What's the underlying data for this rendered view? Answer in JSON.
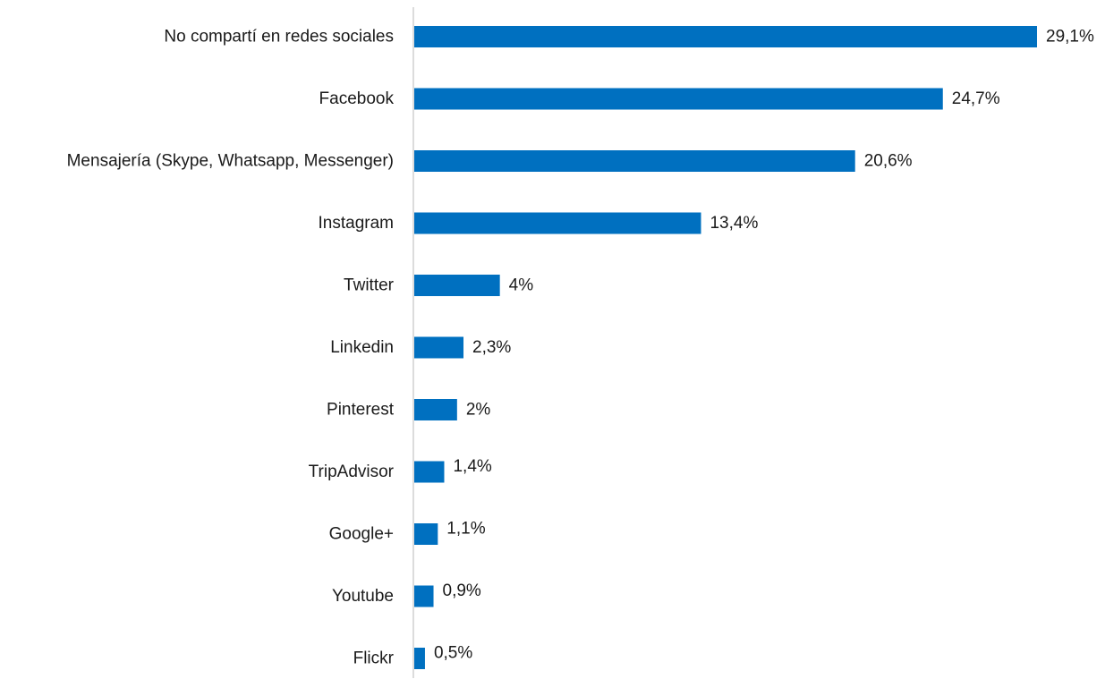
{
  "chart_data": {
    "type": "bar",
    "orientation": "horizontal",
    "categories": [
      "No compartí en redes sociales",
      "Facebook",
      "Mensajería (Skype, Whatsapp, Messenger)",
      "Instagram",
      "Twitter",
      "Linkedin",
      "Pinterest",
      "TripAdvisor",
      "Google+",
      "Youtube",
      "Flickr"
    ],
    "values": [
      29.1,
      24.7,
      20.6,
      13.4,
      4,
      2.3,
      2,
      1.4,
      1.1,
      0.9,
      0.5
    ],
    "value_labels": [
      "29,1%",
      "24,7%",
      "20,6%",
      "13,4%",
      "4%",
      "2,3%",
      "2%",
      "1,4%",
      "1,1%",
      "0,9%",
      "0,5%"
    ],
    "xlim": [
      0,
      29.1
    ],
    "grid": false,
    "legend": "none",
    "bar_color": "#0070C0",
    "axis_color": "#d0d0d0"
  }
}
